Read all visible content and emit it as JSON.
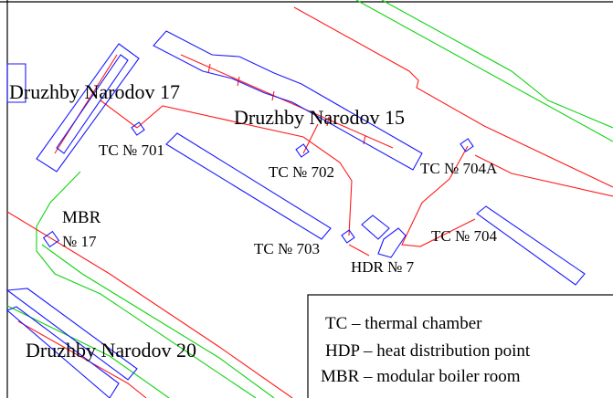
{
  "colors": {
    "building_outline": "#1a1aff",
    "heat_network": "#ff1a1a",
    "road": "#12d312",
    "frame": "#000000",
    "background": "#ffffff"
  },
  "buildings": {
    "druzhby_17": "Druzhby Narodov 17",
    "druzhby_15": "Druzhby Narodov 15",
    "druzhby_20": "Druzhby Narodov 20"
  },
  "points": {
    "tc_701": "TC № 701",
    "tc_702": "TC № 702",
    "tc_703": "TC № 703",
    "tc_704": "TC № 704",
    "tc_704a": "TC № 704A",
    "hdr_7": "HDR № 7",
    "mbr_title": "MBR",
    "mbr_number": "№ 17"
  },
  "legend": {
    "tc": "TC – thermal chamber",
    "hdp": "HDP – heat distribution point",
    "mbr": "MBR – modular boiler room"
  }
}
